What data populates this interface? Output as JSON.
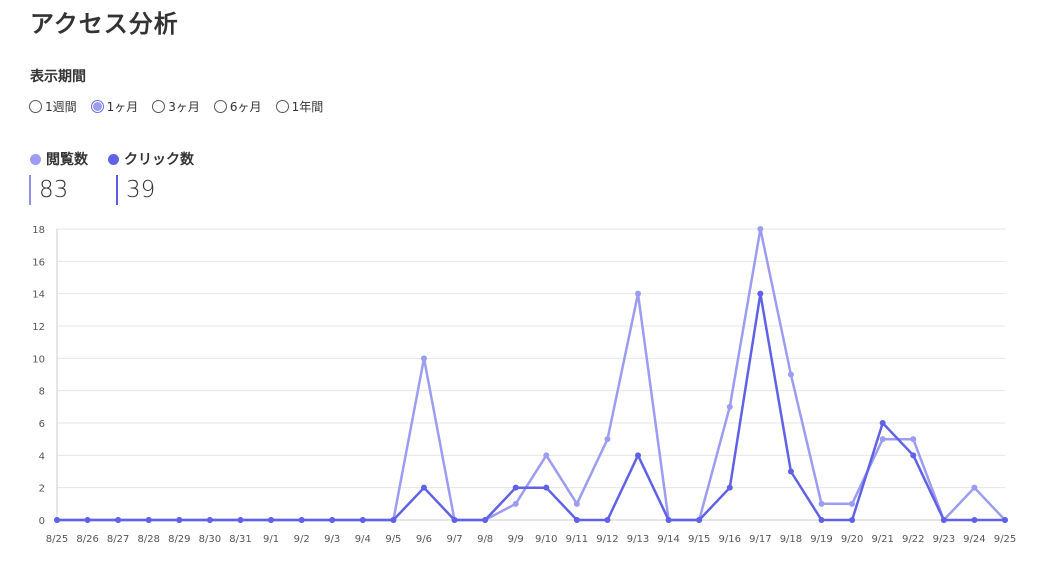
{
  "page": {
    "title": "アクセス分析"
  },
  "period": {
    "label": "表示期間",
    "options": [
      {
        "label": "1週間",
        "checked": false
      },
      {
        "label": "1ヶ月",
        "checked": true
      },
      {
        "label": "3ヶ月",
        "checked": false
      },
      {
        "label": "6ヶ月",
        "checked": false
      },
      {
        "label": "1年間",
        "checked": false
      }
    ]
  },
  "legend": {
    "views": {
      "label": "閲覧数",
      "total": "83",
      "color": "#9b9cf2"
    },
    "clicks": {
      "label": "クリック数",
      "total": "39",
      "color": "#6061e6"
    }
  },
  "chart_data": {
    "type": "line",
    "x": [
      "8/25",
      "8/26",
      "8/27",
      "8/28",
      "8/29",
      "8/30",
      "8/31",
      "9/1",
      "9/2",
      "9/3",
      "9/4",
      "9/5",
      "9/6",
      "9/7",
      "9/8",
      "9/9",
      "9/10",
      "9/11",
      "9/12",
      "9/13",
      "9/14",
      "9/15",
      "9/16",
      "9/17",
      "9/18",
      "9/19",
      "9/20",
      "9/21",
      "9/22",
      "9/23",
      "9/24",
      "9/25"
    ],
    "series": [
      {
        "name": "閲覧数",
        "color": "#9b9cf2",
        "values": [
          0,
          0,
          0,
          0,
          0,
          0,
          0,
          0,
          0,
          0,
          0,
          0,
          10,
          0,
          0,
          1,
          4,
          1,
          5,
          14,
          0,
          0,
          7,
          18,
          9,
          1,
          1,
          5,
          5,
          0,
          2,
          0
        ]
      },
      {
        "name": "クリック数",
        "color": "#6061e6",
        "values": [
          0,
          0,
          0,
          0,
          0,
          0,
          0,
          0,
          0,
          0,
          0,
          0,
          2,
          0,
          0,
          2,
          2,
          0,
          0,
          4,
          0,
          0,
          2,
          14,
          3,
          0,
          0,
          6,
          4,
          0,
          0,
          0
        ]
      }
    ],
    "yticks": [
      "0",
      "2",
      "4",
      "6",
      "8",
      "10",
      "12",
      "14",
      "16",
      "18"
    ],
    "ylim": [
      0,
      18
    ],
    "title": "",
    "xlabel": "",
    "ylabel": ""
  }
}
